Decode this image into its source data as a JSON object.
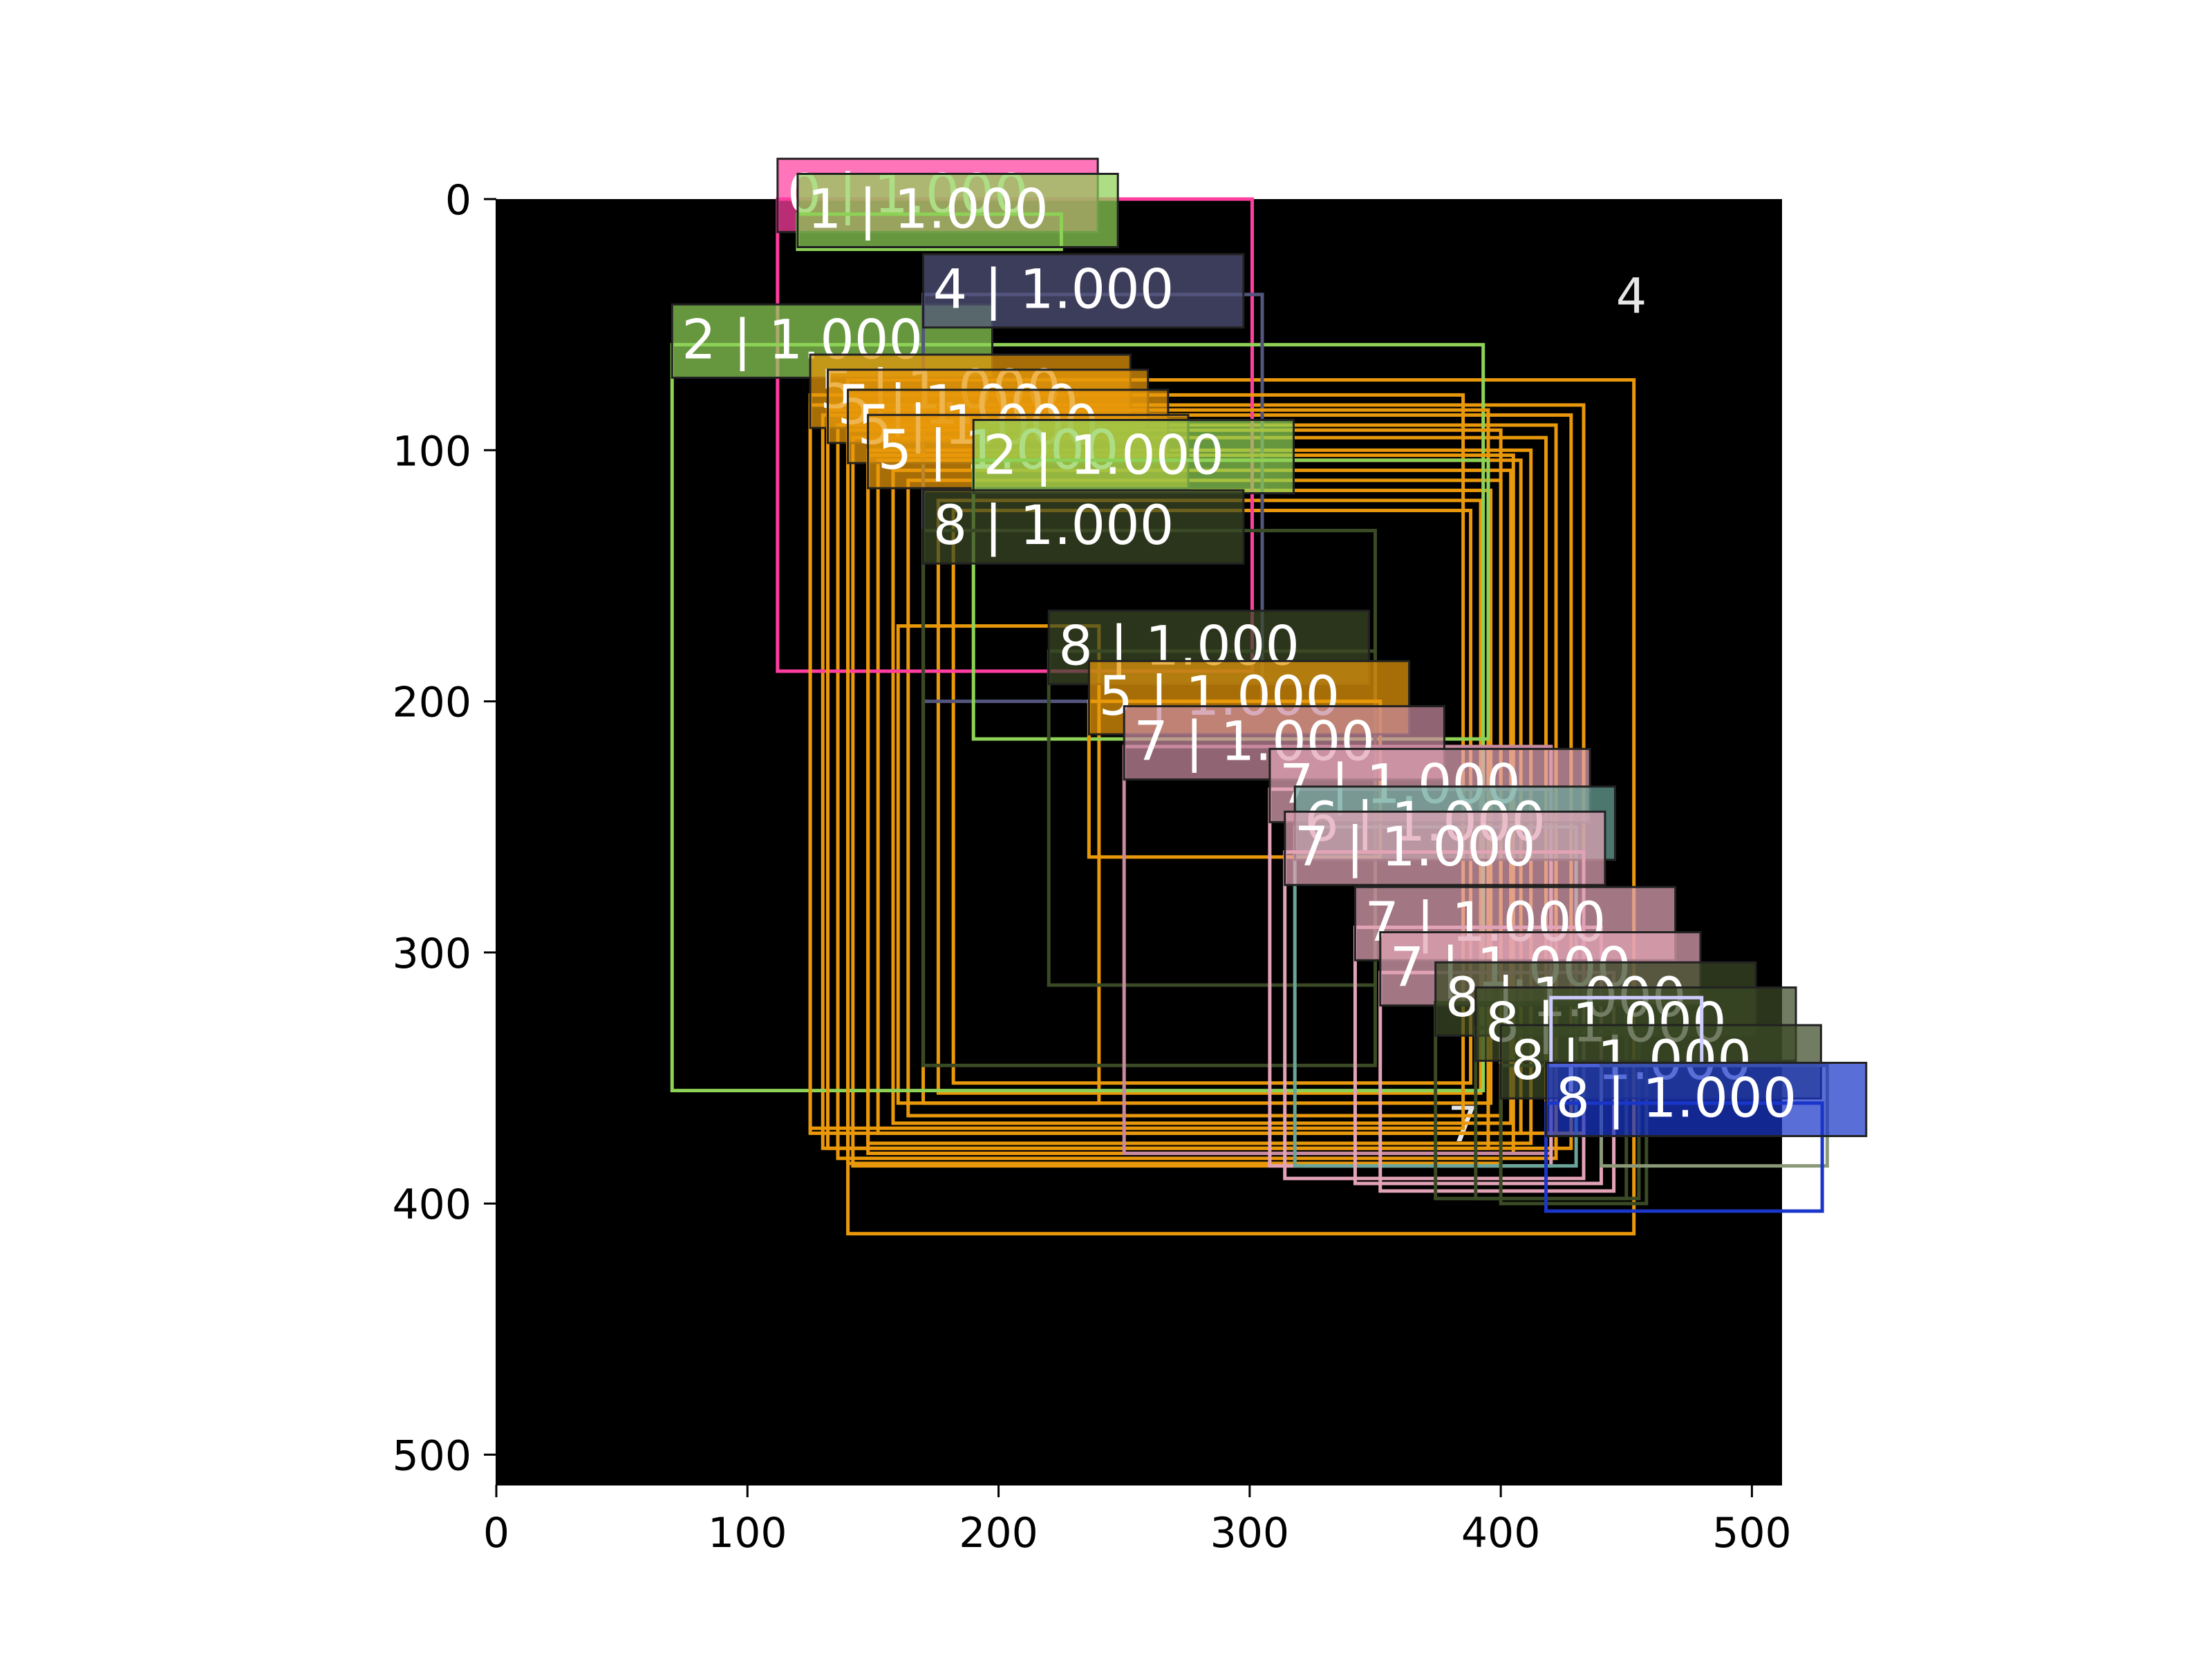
{
  "chart_data": {
    "type": "image-detection-overlay",
    "title": "",
    "xlabel": "",
    "ylabel": "",
    "xlim": [
      0,
      512
    ],
    "ylim": [
      512,
      0
    ],
    "grid": false,
    "background_image": {
      "visible_digits": [
        {
          "text": "4",
          "x": 452,
          "y": 40
        },
        {
          "text": "7",
          "x": 385,
          "y": 370
        }
      ]
    },
    "x_ticks": [
      {
        "value": 0,
        "label": "0"
      },
      {
        "value": 100,
        "label": "100"
      },
      {
        "value": 200,
        "label": "200"
      },
      {
        "value": 300,
        "label": "300"
      },
      {
        "value": 400,
        "label": "400"
      },
      {
        "value": 500,
        "label": "500"
      }
    ],
    "y_ticks": [
      {
        "value": 0,
        "label": "0"
      },
      {
        "value": 100,
        "label": "100"
      },
      {
        "value": 200,
        "label": "200"
      },
      {
        "value": 300,
        "label": "300"
      },
      {
        "value": 400,
        "label": "400"
      },
      {
        "value": 500,
        "label": "500"
      }
    ],
    "boxes": [
      {
        "label": "",
        "x0": 140,
        "y0": 72,
        "x1": 453,
        "y1": 412,
        "color": "#e8980a"
      },
      {
        "label": "",
        "x0": 125,
        "y0": 82,
        "x1": 433,
        "y1": 372,
        "color": "#e8980a"
      },
      {
        "label": "",
        "x0": 130,
        "y0": 86,
        "x1": 428,
        "y1": 378,
        "color": "#e8980a"
      },
      {
        "label": "",
        "x0": 136,
        "y0": 90,
        "x1": 422,
        "y1": 382,
        "color": "#e8980a"
      },
      {
        "label": "",
        "x0": 142,
        "y0": 95,
        "x1": 418,
        "y1": 385,
        "color": "#e8980a"
      },
      {
        "label": "",
        "x0": 148,
        "y0": 100,
        "x1": 412,
        "y1": 376,
        "color": "#e8980a"
      },
      {
        "label": "",
        "x0": 152,
        "y0": 104,
        "x1": 408,
        "y1": 372,
        "color": "#e8980a"
      },
      {
        "label": "",
        "x0": 158,
        "y0": 108,
        "x1": 404,
        "y1": 368,
        "color": "#e8980a"
      },
      {
        "label": "",
        "x0": 164,
        "y0": 112,
        "x1": 400,
        "y1": 365,
        "color": "#e8980a"
      },
      {
        "label": "",
        "x0": 170,
        "y0": 116,
        "x1": 396,
        "y1": 360,
        "color": "#e8980a"
      },
      {
        "label": "",
        "x0": 176,
        "y0": 120,
        "x1": 392,
        "y1": 356,
        "color": "#e8980a"
      },
      {
        "label": "",
        "x0": 182,
        "y0": 124,
        "x1": 388,
        "y1": 352,
        "color": "#e8980a"
      },
      {
        "label": "",
        "x0": 160,
        "y0": 170,
        "x1": 240,
        "y1": 360,
        "color": "#e8980a"
      },
      {
        "label": "0 | 1.000",
        "x0": 112,
        "y0": 0,
        "x1": 301,
        "y1": 188,
        "color": "#ff3ea0"
      },
      {
        "label": "1 | 1.000",
        "x0": 120,
        "y0": 6,
        "x1": 225,
        "y1": 20,
        "color": "#8ed156"
      },
      {
        "label": "2 | 1.000",
        "x0": 70,
        "y0": 58,
        "x1": 393,
        "y1": 355,
        "color": "#8ed156"
      },
      {
        "label": "4 | 1.000",
        "x0": 170,
        "y0": 38,
        "x1": 305,
        "y1": 200,
        "color": "#53557d"
      },
      {
        "label": "5 | 1.000",
        "x0": 125,
        "y0": 78,
        "x1": 385,
        "y1": 370,
        "color": "#e8980a"
      },
      {
        "label": "5 | 1.000",
        "x0": 132,
        "y0": 84,
        "x1": 395,
        "y1": 378,
        "color": "#e8980a"
      },
      {
        "label": "5 | 1.000",
        "x0": 140,
        "y0": 92,
        "x1": 400,
        "y1": 384,
        "color": "#e8980a"
      },
      {
        "label": "5 | 1.000",
        "x0": 148,
        "y0": 102,
        "x1": 405,
        "y1": 380,
        "color": "#e8980a"
      },
      {
        "label": "2 | 1.000",
        "x0": 190,
        "y0": 104,
        "x1": 395,
        "y1": 215,
        "color": "#8ed156"
      },
      {
        "label": "8 | 1.000",
        "x0": 170,
        "y0": 132,
        "x1": 350,
        "y1": 345,
        "color": "#3a4a25"
      },
      {
        "label": "8 | 1.000",
        "x0": 220,
        "y0": 180,
        "x1": 350,
        "y1": 313,
        "color": "#3a4a25"
      },
      {
        "label": "5 | 1.000",
        "x0": 236,
        "y0": 200,
        "x1": 352,
        "y1": 262,
        "color": "#e8980a"
      },
      {
        "label": "7 | 1.000",
        "x0": 250,
        "y0": 218,
        "x1": 420,
        "y1": 380,
        "color": "#c98aa0"
      },
      {
        "label": "7 | 1.000",
        "x0": 308,
        "y0": 235,
        "x1": 420,
        "y1": 385,
        "color": "#e2a3b6"
      },
      {
        "label": "6 | 1.000",
        "x0": 318,
        "y0": 250,
        "x1": 430,
        "y1": 385,
        "color": "#6aa59a"
      },
      {
        "label": "7 | 1.000",
        "x0": 314,
        "y0": 260,
        "x1": 433,
        "y1": 390,
        "color": "#e2a3b6"
      },
      {
        "label": "7 | 1.000",
        "x0": 342,
        "y0": 290,
        "x1": 440,
        "y1": 392,
        "color": "#e2a3b6"
      },
      {
        "label": "7 | 1.000",
        "x0": 352,
        "y0": 308,
        "x1": 445,
        "y1": 395,
        "color": "#e2a3b6"
      },
      {
        "label": "8 | 1.000",
        "x0": 374,
        "y0": 320,
        "x1": 450,
        "y1": 398,
        "color": "#3a4a25"
      },
      {
        "label": "8 | 1.000",
        "x0": 390,
        "y0": 330,
        "x1": 455,
        "y1": 398,
        "color": "#3a4a25"
      },
      {
        "label": "8 | 1.000",
        "x0": 400,
        "y0": 345,
        "x1": 458,
        "y1": 400,
        "color": "#3a4a25"
      },
      {
        "label": "",
        "x0": 420,
        "y0": 318,
        "x1": 480,
        "y1": 345,
        "color": "#ccccff"
      },
      {
        "label": "",
        "x0": 440,
        "y0": 345,
        "x1": 530,
        "y1": 385,
        "color": "#8a9978"
      },
      {
        "label": "8 | 1.000",
        "x0": 418,
        "y0": 360,
        "x1": 528,
        "y1": 403,
        "color": "#1b36c8"
      }
    ]
  }
}
